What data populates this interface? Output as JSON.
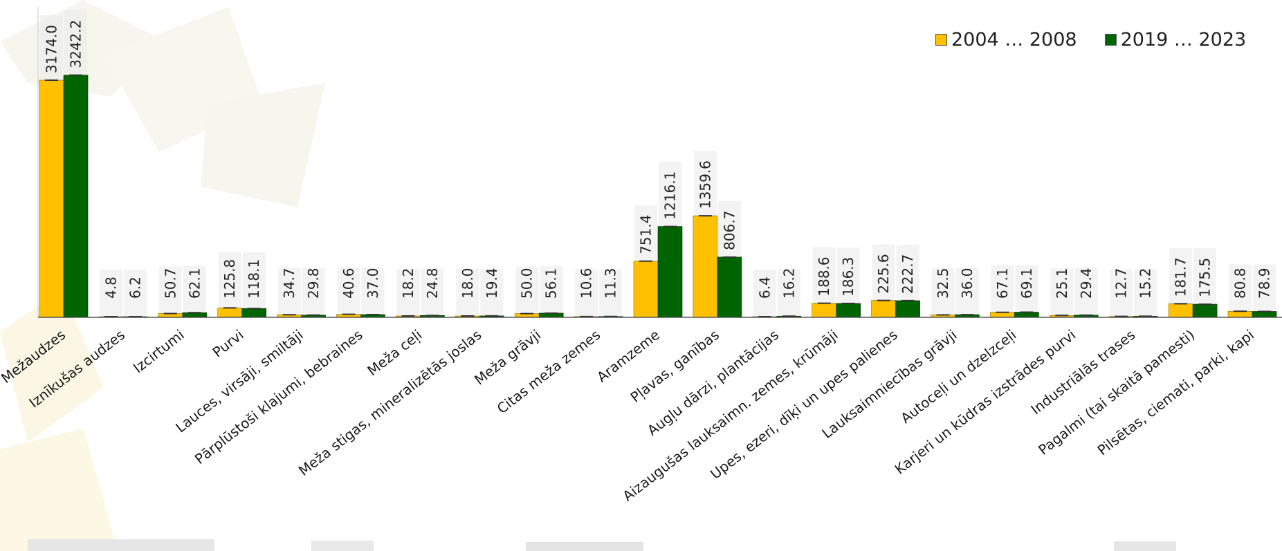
{
  "chart_data": {
    "type": "bar",
    "categories": [
      "Mežaudzes",
      "Iznīkušas audzes",
      "Izcirtumi",
      "Purvi",
      "Lauces, virsāji, smiltāji",
      "Pārplūstoši klajumi, bebraines",
      "Meža ceļi",
      "Meža stigas, mineralizētās joslas",
      "Meža grāvji",
      "Citas meža zemes",
      "Aramzeme",
      "Pļavas, ganības",
      "Augļu dārzi, plantācijas",
      "Aizaugušas lauksaimn. zemes, krūmāji",
      "Upes, ezeri, dīķi un upes palienes",
      "Lauksaimniecības grāvji",
      "Autoceļi un dzelzceļi",
      "Karjeri un kūdras izstrādes purvi",
      "Industriālās trases",
      "Pagalmi (tai skaitā pamesti)",
      "Pilsētas, ciemati,  parki, kapi"
    ],
    "series": [
      {
        "name": "2004 … 2008",
        "color": "#ffc000",
        "values": [
          3174.0,
          4.8,
          50.7,
          125.8,
          34.7,
          40.6,
          18.2,
          18.0,
          50.0,
          10.6,
          751.4,
          1359.6,
          6.4,
          188.6,
          225.6,
          32.5,
          67.1,
          25.1,
          12.7,
          181.7,
          80.8
        ]
      },
      {
        "name": "2019 … 2023",
        "color": "#006400",
        "values": [
          3242.2,
          6.2,
          62.1,
          118.1,
          29.8,
          37.0,
          24.8,
          19.4,
          56.1,
          11.3,
          1216.1,
          806.7,
          16.2,
          186.3,
          222.7,
          36.0,
          69.1,
          29.4,
          15.2,
          175.5,
          78.9
        ]
      }
    ],
    "value_labels": [
      [
        "3174.0",
        "3242.2"
      ],
      [
        "4.8",
        "6.2"
      ],
      [
        "50.7",
        "62.1"
      ],
      [
        "125.8",
        "118.1"
      ],
      [
        "34.7",
        "29.8"
      ],
      [
        "40.6",
        "37.0"
      ],
      [
        "18.2",
        "24.8"
      ],
      [
        "18.0",
        "19.4"
      ],
      [
        "50.0",
        "56.1"
      ],
      [
        "10.6",
        "11.3"
      ],
      [
        "751.4",
        "1216.1"
      ],
      [
        "1359.6",
        "806.7"
      ],
      [
        "6.4",
        "16.2"
      ],
      [
        "188.6",
        "186.3"
      ],
      [
        "225.6",
        "222.7"
      ],
      [
        "32.5",
        "36.0"
      ],
      [
        "67.1",
        "69.1"
      ],
      [
        "25.1",
        "29.4"
      ],
      [
        "12.7",
        "15.2"
      ],
      [
        "181.7",
        "175.5"
      ],
      [
        "80.8",
        "78.9"
      ]
    ],
    "title": "",
    "xlabel": "",
    "ylabel": "",
    "ylim": [
      0,
      3600
    ],
    "grid": false,
    "legend_position": "top-right",
    "error_bars": true
  }
}
